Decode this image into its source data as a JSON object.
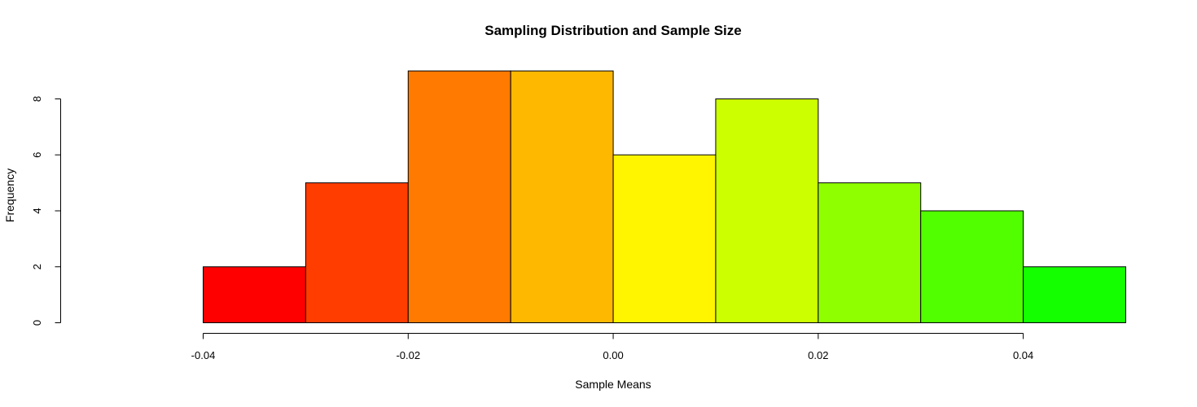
{
  "chart_data": {
    "type": "bar",
    "title": "Sampling Distribution and Sample Size",
    "xlabel": "Sample Means",
    "ylabel": "Frequency",
    "bins": [
      {
        "x0": -0.04,
        "x1": -0.03,
        "count": 2,
        "color": "#FF0000"
      },
      {
        "x0": -0.03,
        "x1": -0.02,
        "count": 5,
        "color": "#FF3D00"
      },
      {
        "x0": -0.02,
        "x1": -0.01,
        "count": 9,
        "color": "#FF7A00"
      },
      {
        "x0": -0.01,
        "x1": 0.0,
        "count": 9,
        "color": "#FFB800"
      },
      {
        "x0": 0.0,
        "x1": 0.01,
        "count": 6,
        "color": "#FFF500"
      },
      {
        "x0": 0.01,
        "x1": 0.02,
        "count": 8,
        "color": "#CCFF00"
      },
      {
        "x0": 0.02,
        "x1": 0.03,
        "count": 5,
        "color": "#8FFF00"
      },
      {
        "x0": 0.03,
        "x1": 0.04,
        "count": 4,
        "color": "#52FF00"
      },
      {
        "x0": 0.04,
        "x1": 0.05,
        "count": 2,
        "color": "#14FF00"
      }
    ],
    "x_ticks": [
      {
        "value": -0.04,
        "label": "-0.04"
      },
      {
        "value": -0.02,
        "label": "-0.02"
      },
      {
        "value": 0.0,
        "label": "0.00"
      },
      {
        "value": 0.02,
        "label": "0.02"
      },
      {
        "value": 0.04,
        "label": "0.04"
      }
    ],
    "y_ticks": [
      {
        "value": 0,
        "label": "0"
      },
      {
        "value": 2,
        "label": "2"
      },
      {
        "value": 4,
        "label": "4"
      },
      {
        "value": 6,
        "label": "6"
      },
      {
        "value": 8,
        "label": "8"
      }
    ],
    "xlim": [
      -0.04,
      0.05
    ],
    "ylim": [
      0,
      9
    ],
    "grid": false,
    "legend": "none"
  }
}
